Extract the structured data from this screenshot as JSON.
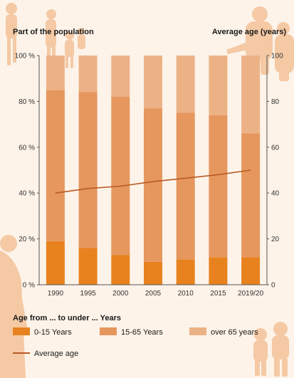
{
  "colors": {
    "background": "#fdf3e9",
    "young": "#e8821f",
    "working": "#e6975e",
    "old": "#ecb286",
    "average_line": "#b85a24",
    "silhouette": "#f4c9a4"
  },
  "chart_data": {
    "type": "bar",
    "stacked": true,
    "categories": [
      "1990",
      "1995",
      "2000",
      "2005",
      "2010",
      "2015",
      "2019/20"
    ],
    "series": [
      {
        "name": "0-15 Years",
        "values": [
          19,
          16,
          13,
          10,
          11,
          12,
          12
        ]
      },
      {
        "name": "15-65 Years",
        "values": [
          66,
          68,
          69,
          67,
          64,
          62,
          54
        ]
      },
      {
        "name": "over 65 years",
        "values": [
          15,
          16,
          18,
          23,
          25,
          26,
          34
        ]
      }
    ],
    "line_series": {
      "name": "Average age",
      "values": [
        40,
        42,
        43,
        45,
        46.5,
        48,
        50
      ]
    },
    "left_axis": {
      "label": "Part of the population",
      "ylim": [
        0,
        100
      ],
      "ticks": [
        "0 %",
        "20 %",
        "40 %",
        "60 %",
        "80 %",
        "100 %"
      ]
    },
    "right_axis": {
      "label": "Average age (years)",
      "ylim": [
        0,
        100
      ],
      "ticks": [
        "0",
        "20",
        "40",
        "60",
        "80",
        "100"
      ]
    },
    "legend": {
      "title": "Age from ... to under ... Years",
      "placement": "bottom",
      "items": [
        "0-15 Years",
        "15-65 Years",
        "over 65 years"
      ],
      "line_item": "Average age"
    },
    "grid": false
  }
}
